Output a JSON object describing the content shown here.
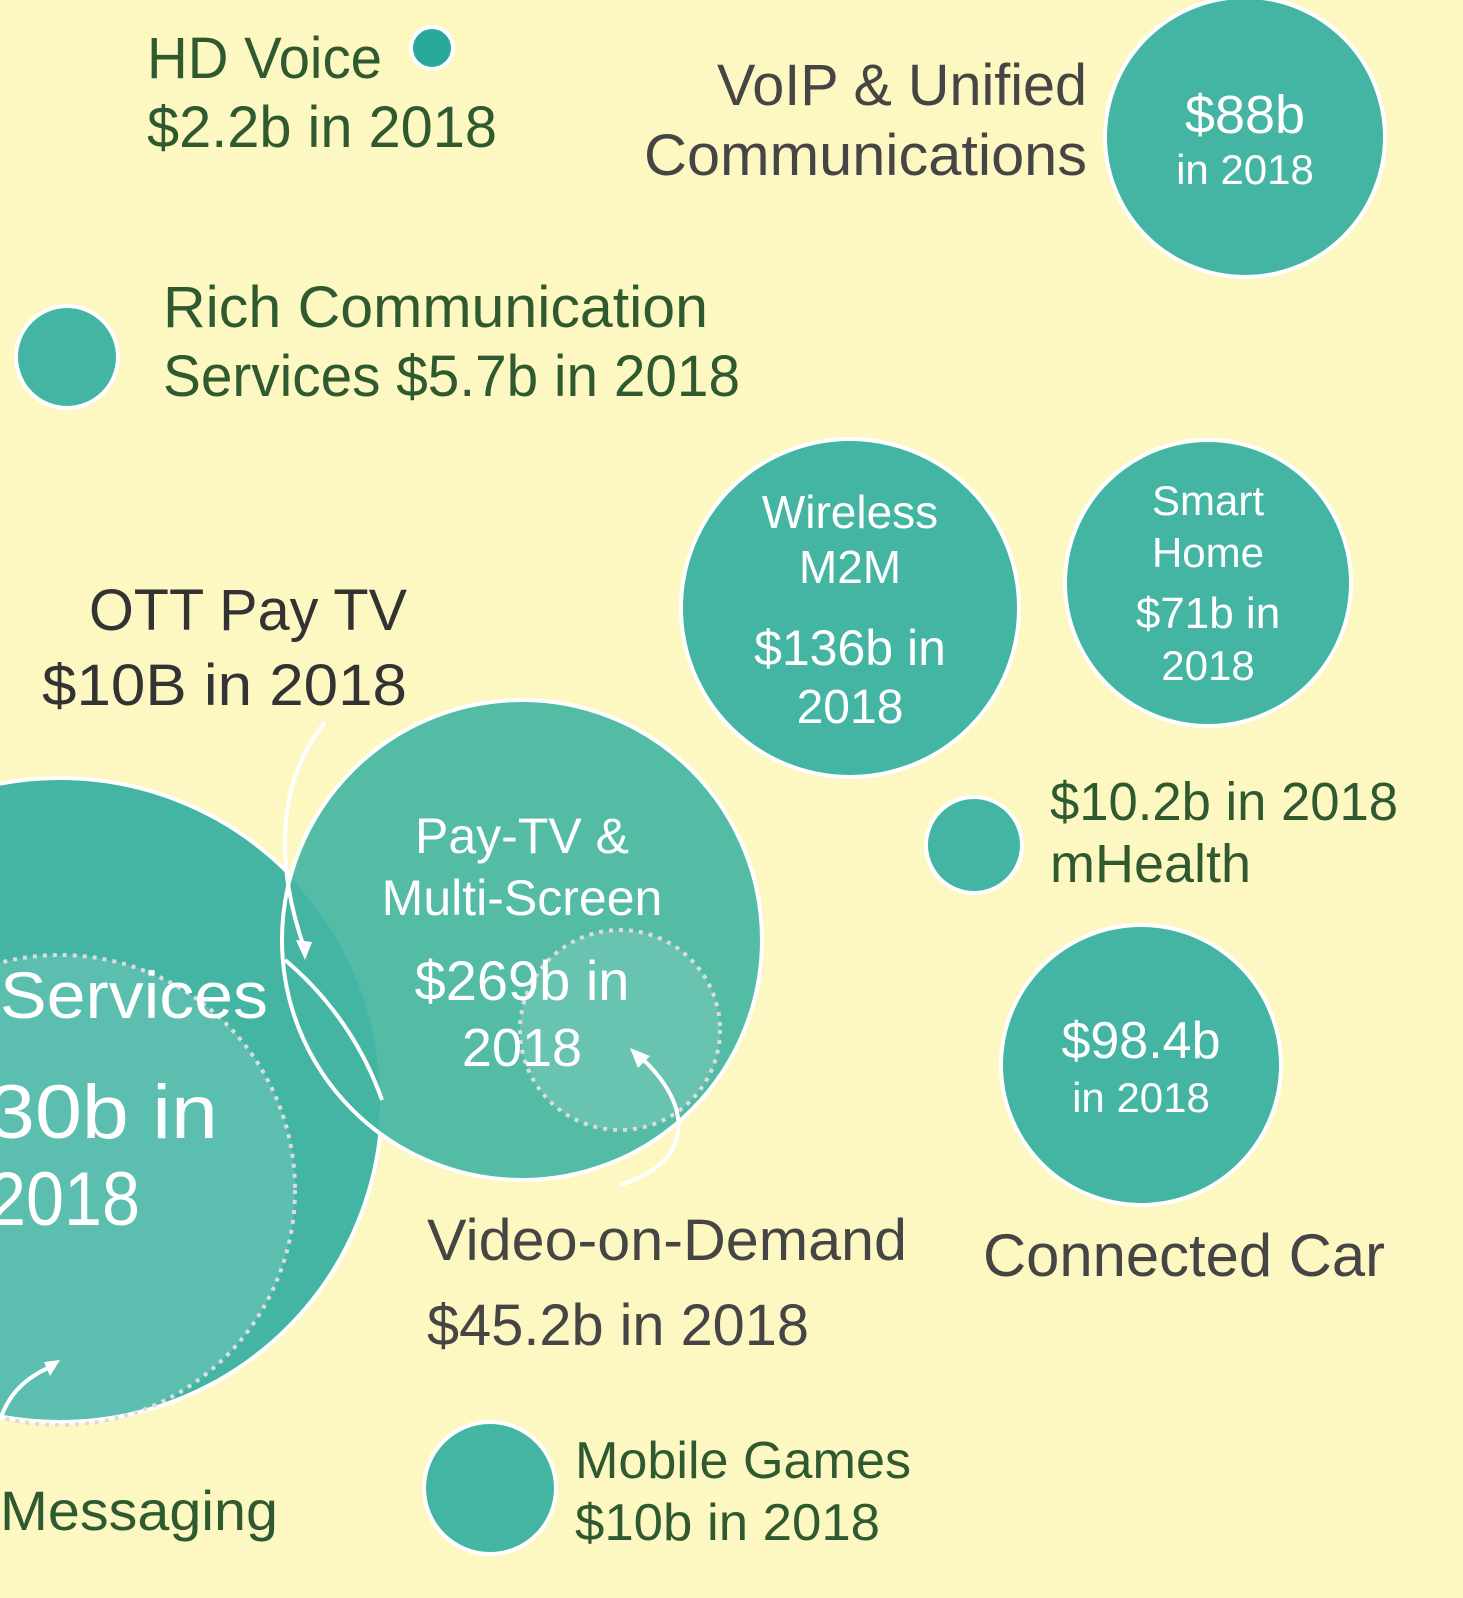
{
  "nodes": [
    {
      "lines": [
        "HD Voice",
        "$2.2b in 2018"
      ]
    },
    {
      "lines": [
        "VoIP & Unified",
        "Communications"
      ],
      "bubble": [
        "$88b",
        "in 2018"
      ]
    },
    {
      "lines": [
        "Rich Communication",
        "Services $5.7b in 2018"
      ]
    },
    {
      "lines": [
        "OTT Pay TV",
        "$10B in 2018"
      ]
    },
    {
      "bubble": [
        "Wireless",
        "M2M",
        "$136b in",
        "2018"
      ]
    },
    {
      "bubble": [
        "Smart",
        "Home",
        "$71b in",
        "2018"
      ]
    },
    {
      "lines": [
        "$10.2b in 2018",
        "mHealth"
      ]
    },
    {
      "lines": [
        "Connected Car"
      ],
      "bubble": [
        "$98.4b",
        "in 2018"
      ]
    },
    {
      "bubble": [
        "Pay-TV &",
        "Multi-Screen",
        "$269b in",
        "2018"
      ]
    },
    {
      "bubble": [
        "Services",
        "30b in",
        "2018"
      ]
    },
    {
      "lines": [
        "Video-on-Demand",
        "$45.2b in 2018"
      ]
    },
    {
      "lines": [
        "Mobile Games",
        "$10b in 2018"
      ]
    },
    {
      "lines": [
        "Messaging"
      ]
    }
  ]
}
